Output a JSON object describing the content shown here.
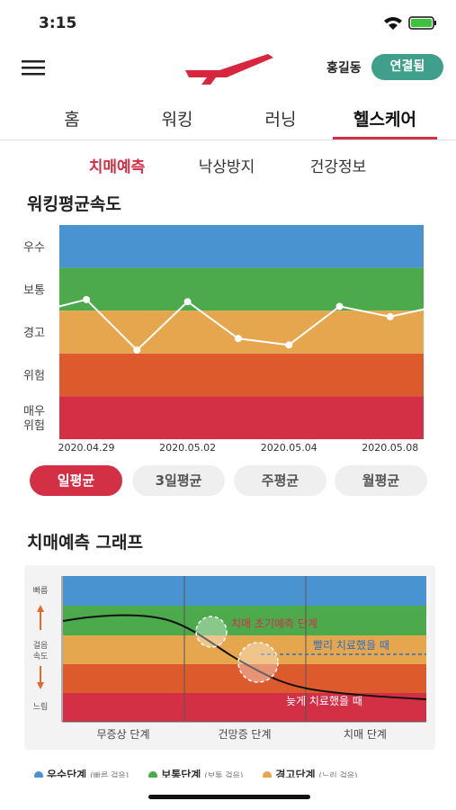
{
  "status_bar": {
    "time": "3:15"
  },
  "header": {
    "user": "홍길동",
    "status_button": "연결됨"
  },
  "tabs": [
    "홈",
    "워킹",
    "러닝",
    "헬스케어"
  ],
  "active_tab": 3,
  "sub_tabs": [
    "치매예측",
    "낙상방지",
    "건강정보"
  ],
  "active_sub_tab": 0,
  "walking_chart": {
    "type": "line",
    "title": "워킹평균속도",
    "bands": [
      {
        "label": [
          "우수"
        ],
        "color": "#4a93d1"
      },
      {
        "label": [
          "보통"
        ],
        "color": "#4caa4c"
      },
      {
        "label": [
          "경고"
        ],
        "color": "#e6a64d"
      },
      {
        "label": [
          "위험"
        ],
        "color": "#dd5a2c"
      },
      {
        "label": [
          "매우",
          "위험"
        ],
        "color": "#d32f45"
      }
    ],
    "ylim": [
      0,
      5
    ],
    "categories": [
      null,
      "2020.04.29",
      null,
      "2020.05.02",
      null,
      "2020.05.04",
      null,
      "2020.05.08",
      null
    ],
    "values": [
      2.96,
      3.26,
      2.08,
      3.21,
      2.35,
      2.2,
      3.1,
      2.86,
      3.12
    ],
    "color": "#ffffff"
  },
  "period_buttons": [
    "일평균",
    "3일평균",
    "주평균",
    "월평균"
  ],
  "active_period": 0,
  "dementia_graph": {
    "title": "치매예측 그래프",
    "speed_fast": "빠름",
    "speed_label": [
      "걸음",
      "속도"
    ],
    "speed_slow": "느림",
    "stages": [
      "무증상 단계",
      "건망증 단계",
      "치매 단계"
    ],
    "annotations": {
      "early": "치매 초기예측 단계",
      "early_treat": "빨리 치료했을 때",
      "late_treat": "늦게 치료했을 때"
    }
  },
  "legend": [
    {
      "label": "우수단계",
      "note": "(빠른 걸음)",
      "color": "#4a93d1"
    },
    {
      "label": "보통단계",
      "note": "(보통 걸음)",
      "color": "#4caa4c"
    },
    {
      "label": "경고단계",
      "note": "(느린 걸음)",
      "color": "#e6a64d"
    }
  ]
}
